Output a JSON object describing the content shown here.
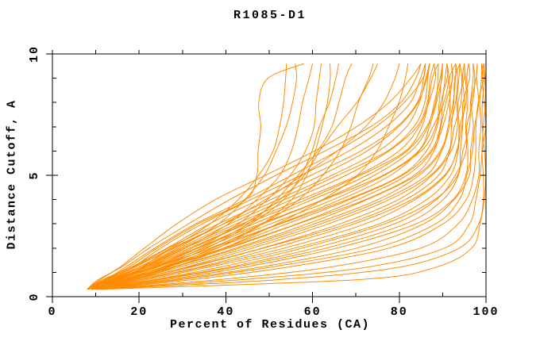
{
  "chart_data": {
    "type": "line",
    "title": "R1085-D1",
    "xlabel": "Percent of Residues (CA)",
    "ylabel": "Distance Cutoff, A",
    "xlim": [
      0,
      100
    ],
    "ylim": [
      0,
      10
    ],
    "x_major_ticks": [
      0,
      20,
      40,
      60,
      80,
      100
    ],
    "x_minor_ticks": [
      10,
      30,
      50,
      70,
      90
    ],
    "y_major_ticks": [
      0,
      5,
      10
    ],
    "y_minor_ticks": [
      1,
      2,
      3,
      4,
      6,
      7,
      8,
      9
    ],
    "grid": false,
    "legend": false,
    "line_color": "#ff8c00",
    "frame_color": "#000000",
    "background": "#ffffff",
    "cutoff_levels": [
      0.3,
      0.7,
      1.2,
      2,
      3,
      4,
      5,
      6,
      7,
      8,
      9,
      9.6
    ],
    "curves_percent_at_cutoff": [
      [
        11,
        70,
        88,
        97,
        99,
        99.5,
        99.5,
        99.5,
        99.5,
        99.5,
        99.5,
        99.5
      ],
      [
        10,
        52,
        80,
        94,
        98,
        99,
        99.5,
        99.5,
        99.5,
        99.5,
        99.5,
        99.5
      ],
      [
        10,
        44,
        72,
        90,
        96,
        98,
        99,
        99,
        99.5,
        99.5,
        99.5,
        99.5
      ],
      [
        10,
        38,
        63,
        85,
        94,
        97,
        98,
        98,
        99,
        99,
        99,
        99
      ],
      [
        10,
        32,
        54,
        78,
        90,
        95,
        97,
        98,
        98,
        98,
        99,
        99
      ],
      [
        10,
        30,
        50,
        74,
        88,
        94,
        96,
        97,
        97,
        98,
        98,
        98
      ],
      [
        10,
        28,
        47,
        70,
        86,
        93,
        96,
        96,
        97,
        97,
        98,
        98
      ],
      [
        9,
        26,
        44,
        66,
        84,
        92,
        95,
        96,
        96,
        97,
        97,
        97
      ],
      [
        9,
        25,
        42,
        63,
        81,
        90,
        94,
        95,
        96,
        96,
        97,
        97
      ],
      [
        9,
        24,
        40,
        60,
        79,
        89,
        93,
        95,
        95,
        96,
        96,
        96
      ],
      [
        9,
        23,
        38,
        58,
        77,
        88,
        93,
        94,
        95,
        95,
        96,
        96
      ],
      [
        9,
        22,
        36,
        56,
        75,
        86,
        92,
        94,
        94,
        95,
        95,
        95
      ],
      [
        9,
        21,
        34,
        53,
        72,
        84,
        91,
        93,
        94,
        95,
        95,
        95
      ],
      [
        9,
        20,
        33,
        51,
        70,
        83,
        90,
        93,
        94,
        94,
        95,
        95
      ],
      [
        9,
        20,
        32,
        49,
        68,
        81,
        89,
        92,
        93,
        94,
        94,
        94
      ],
      [
        9,
        19,
        31,
        48,
        66,
        80,
        88,
        92,
        93,
        93,
        94,
        94
      ],
      [
        9,
        19,
        30,
        46,
        64,
        78,
        87,
        91,
        92,
        93,
        93,
        94
      ],
      [
        8,
        18,
        29,
        45,
        62,
        76,
        86,
        90,
        92,
        93,
        93,
        93
      ],
      [
        8,
        18,
        28,
        43,
        60,
        75,
        85,
        90,
        91,
        92,
        93,
        93
      ],
      [
        8,
        17,
        27,
        42,
        59,
        73,
        84,
        89,
        91,
        92,
        92,
        93
      ],
      [
        8,
        17,
        26,
        41,
        57,
        72,
        83,
        88,
        90,
        91,
        92,
        92
      ],
      [
        8,
        16,
        26,
        40,
        56,
        70,
        82,
        88,
        90,
        91,
        92,
        92
      ],
      [
        8,
        16,
        25,
        39,
        54,
        69,
        81,
        87,
        89,
        90,
        91,
        91
      ],
      [
        8,
        16,
        25,
        38,
        53,
        68,
        80,
        86,
        89,
        90,
        91,
        91
      ],
      [
        8,
        15,
        24,
        37,
        52,
        66,
        78,
        85,
        88,
        90,
        91,
        91
      ],
      [
        8,
        15,
        24,
        36,
        50,
        65,
        77,
        85,
        88,
        89,
        90,
        90
      ],
      [
        8,
        15,
        23,
        35,
        49,
        63,
        76,
        84,
        87,
        89,
        90,
        90
      ],
      [
        8,
        14,
        23,
        34,
        48,
        62,
        74,
        83,
        87,
        88,
        89,
        90
      ],
      [
        8,
        14,
        22,
        33,
        46,
        60,
        73,
        82,
        86,
        88,
        89,
        89
      ],
      [
        8,
        14,
        22,
        32,
        45,
        59,
        71,
        81,
        85,
        87,
        88,
        89
      ],
      [
        8,
        14,
        21,
        31,
        44,
        57,
        70,
        80,
        85,
        87,
        88,
        88
      ],
      [
        8,
        13,
        21,
        30,
        42,
        55,
        68,
        78,
        84,
        86,
        87,
        88
      ],
      [
        8,
        13,
        20,
        29,
        41,
        54,
        66,
        77,
        83,
        86,
        87,
        87
      ],
      [
        8,
        13,
        20,
        28,
        40,
        52,
        64,
        75,
        82,
        85,
        86,
        87
      ],
      [
        8,
        12,
        19,
        27,
        38,
        50,
        62,
        73,
        80,
        84,
        86,
        87
      ],
      [
        8,
        12,
        18,
        26,
        36,
        48,
        60,
        71,
        79,
        84,
        86,
        86
      ],
      [
        8,
        12,
        18,
        25,
        35,
        46,
        57,
        68,
        77,
        83,
        85,
        86
      ],
      [
        8,
        12,
        17,
        24,
        33,
        44,
        55,
        66,
        75,
        81,
        85,
        86
      ],
      [
        8,
        11,
        16,
        22,
        31,
        41,
        52,
        63,
        73,
        80,
        84,
        85
      ],
      [
        8,
        11,
        15,
        21,
        29,
        38,
        49,
        60,
        70,
        78,
        83,
        85
      ],
      [
        9,
        16,
        25,
        36,
        46,
        53,
        57,
        60,
        62,
        64,
        65,
        66
      ],
      [
        9,
        17,
        27,
        38,
        48,
        55,
        59,
        61,
        62,
        63,
        64,
        64
      ],
      [
        9,
        15,
        23,
        33,
        43,
        50,
        55,
        58,
        60,
        61,
        62,
        62
      ],
      [
        8,
        14,
        21,
        31,
        41,
        47,
        52,
        55,
        57,
        58,
        59,
        60
      ],
      [
        8,
        13,
        20,
        29,
        38,
        44,
        49,
        52,
        54,
        55,
        56,
        56
      ],
      [
        9,
        15,
        24,
        34,
        45,
        52,
        57,
        61,
        64,
        66,
        68,
        69
      ],
      [
        9,
        16,
        26,
        37,
        49,
        57,
        62,
        66,
        69,
        71,
        73,
        74
      ],
      [
        8,
        14,
        22,
        32,
        44,
        52,
        58,
        62,
        66,
        70,
        73,
        75
      ],
      [
        8,
        13,
        19,
        27,
        36,
        43,
        48,
        51,
        52,
        53,
        54,
        54
      ],
      [
        8,
        12,
        17,
        24,
        34,
        45,
        47,
        47,
        48,
        48,
        50,
        58
      ],
      [
        9,
        18,
        28,
        40,
        52,
        62,
        70,
        75,
        78,
        80,
        81,
        82
      ],
      [
        8,
        13,
        19,
        28,
        39,
        49,
        58,
        66,
        72,
        76,
        79,
        80
      ]
    ]
  }
}
